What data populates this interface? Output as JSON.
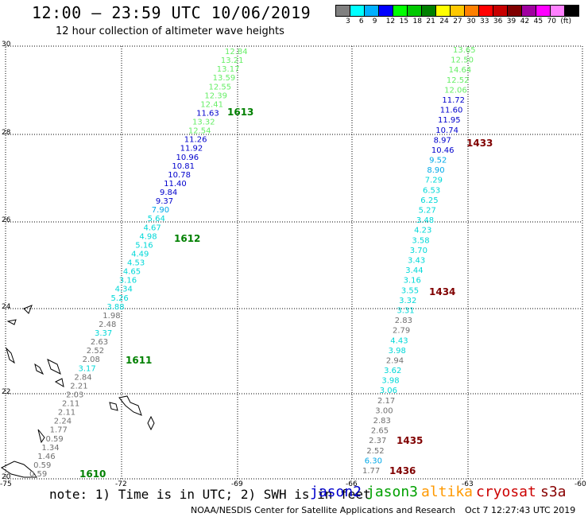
{
  "header": {
    "title": "12:00 – 23:59 UTC 10/06/2019",
    "subtitle": "12 hour collection of altimeter wave heights"
  },
  "legend": {
    "colors": [
      "#808080",
      "#00ffff",
      "#00b0ff",
      "#0000ff",
      "#00ff00",
      "#00c800",
      "#008000",
      "#ffff00",
      "#ffc800",
      "#ff8000",
      "#ff0000",
      "#c80000",
      "#800000",
      "#a000a0",
      "#ff00ff",
      "#ff80ff",
      "#000000"
    ],
    "ticks": [
      "3",
      "6",
      "9",
      "12",
      "15",
      "18",
      "21",
      "24",
      "27",
      "30",
      "33",
      "36",
      "39",
      "42",
      "45",
      "70",
      "(ft)"
    ]
  },
  "axes": {
    "lat_labels": [
      "30",
      "28",
      "26",
      "24",
      "22",
      "20"
    ],
    "lon_labels": [
      "-75",
      "-72",
      "-69",
      "-66",
      "-63",
      "-60"
    ]
  },
  "pass_labels": [
    {
      "text": "1613",
      "color": "#008000"
    },
    {
      "text": "1612",
      "color": "#008000"
    },
    {
      "text": "1611",
      "color": "#008000"
    },
    {
      "text": "1610",
      "color": "#008000"
    },
    {
      "text": "1433",
      "color": "#800000"
    },
    {
      "text": "1434",
      "color": "#800000"
    },
    {
      "text": "1435",
      "color": "#800000"
    },
    {
      "text": "1436",
      "color": "#800000"
    }
  ],
  "track_west": [
    {
      "v": "12.84",
      "c": "#66ee66"
    },
    {
      "v": "13.21",
      "c": "#66ee66"
    },
    {
      "v": "13.17",
      "c": "#66ee66"
    },
    {
      "v": "13.59",
      "c": "#66ee66"
    },
    {
      "v": "12.55",
      "c": "#66ee66"
    },
    {
      "v": "12.39",
      "c": "#66ee66"
    },
    {
      "v": "12.41",
      "c": "#66ee66"
    },
    {
      "v": "11.63",
      "c": "#0000cc"
    },
    {
      "v": "13.32",
      "c": "#66ee66"
    },
    {
      "v": "12.54",
      "c": "#66ee66"
    },
    {
      "v": "11.26",
      "c": "#0000cc"
    },
    {
      "v": "11.92",
      "c": "#0000cc"
    },
    {
      "v": "10.96",
      "c": "#0000cc"
    },
    {
      "v": "10.81",
      "c": "#0000cc"
    },
    {
      "v": "10.78",
      "c": "#0000cc"
    },
    {
      "v": "11.40",
      "c": "#0000cc"
    },
    {
      "v": "9.84",
      "c": "#0000cc"
    },
    {
      "v": "9.37",
      "c": "#0000cc"
    },
    {
      "v": "7.90",
      "c": "#00a8e8"
    },
    {
      "v": "5.64",
      "c": "#00d8d8"
    },
    {
      "v": "4.67",
      "c": "#00d8d8"
    },
    {
      "v": "4.98",
      "c": "#00d8d8"
    },
    {
      "v": "5.16",
      "c": "#00d8d8"
    },
    {
      "v": "4.49",
      "c": "#00d8d8"
    },
    {
      "v": "4.53",
      "c": "#00d8d8"
    },
    {
      "v": "4.65",
      "c": "#00d8d8"
    },
    {
      "v": "3.16",
      "c": "#00d8d8"
    },
    {
      "v": "4.34",
      "c": "#00d8d8"
    },
    {
      "v": "5.26",
      "c": "#00d8d8"
    },
    {
      "v": "3.88",
      "c": "#00d8d8"
    },
    {
      "v": "1.98",
      "c": "#707070"
    },
    {
      "v": "2.48",
      "c": "#707070"
    },
    {
      "v": "3.37",
      "c": "#00d8d8"
    },
    {
      "v": "2.63",
      "c": "#707070"
    },
    {
      "v": "2.52",
      "c": "#707070"
    },
    {
      "v": "2.08",
      "c": "#707070"
    },
    {
      "v": "3.17",
      "c": "#00d8d8"
    },
    {
      "v": "2.84",
      "c": "#707070"
    },
    {
      "v": "2.21",
      "c": "#707070"
    },
    {
      "v": "2.03",
      "c": "#707070"
    },
    {
      "v": "2.11",
      "c": "#707070"
    },
    {
      "v": "2.11",
      "c": "#707070"
    },
    {
      "v": "2.24",
      "c": "#707070"
    },
    {
      "v": "1.77",
      "c": "#707070"
    },
    {
      "v": "0.59",
      "c": "#707070"
    },
    {
      "v": "1.34",
      "c": "#707070"
    },
    {
      "v": "1.46",
      "c": "#707070"
    },
    {
      "v": "0.59",
      "c": "#707070"
    },
    {
      "v": "0.59",
      "c": "#707070"
    }
  ],
  "track_east": [
    {
      "v": "13.65",
      "c": "#66ee66"
    },
    {
      "v": "12.50",
      "c": "#66ee66"
    },
    {
      "v": "14.64",
      "c": "#66ee66"
    },
    {
      "v": "12.52",
      "c": "#66ee66"
    },
    {
      "v": "12.06",
      "c": "#66ee66"
    },
    {
      "v": "11.72",
      "c": "#0000cc"
    },
    {
      "v": "11.60",
      "c": "#0000cc"
    },
    {
      "v": "11.95",
      "c": "#0000cc"
    },
    {
      "v": "10.74",
      "c": "#0000cc"
    },
    {
      "v": "8.97",
      "c": "#0000cc"
    },
    {
      "v": "10.46",
      "c": "#0000cc"
    },
    {
      "v": "9.52",
      "c": "#00a8e8"
    },
    {
      "v": "8.90",
      "c": "#00a8e8"
    },
    {
      "v": "7.29",
      "c": "#00d8d8"
    },
    {
      "v": "6.53",
      "c": "#00d8d8"
    },
    {
      "v": "6.25",
      "c": "#00d8d8"
    },
    {
      "v": "5.27",
      "c": "#00d8d8"
    },
    {
      "v": "3.48",
      "c": "#00d8d8"
    },
    {
      "v": "4.23",
      "c": "#00d8d8"
    },
    {
      "v": "3.58",
      "c": "#00d8d8"
    },
    {
      "v": "3.70",
      "c": "#00d8d8"
    },
    {
      "v": "3.43",
      "c": "#00d8d8"
    },
    {
      "v": "3.44",
      "c": "#00d8d8"
    },
    {
      "v": "3.16",
      "c": "#00d8d8"
    },
    {
      "v": "3.55",
      "c": "#00d8d8"
    },
    {
      "v": "3.32",
      "c": "#00d8d8"
    },
    {
      "v": "3.31",
      "c": "#00d8d8"
    },
    {
      "v": "2.83",
      "c": "#707070"
    },
    {
      "v": "2.79",
      "c": "#707070"
    },
    {
      "v": "4.43",
      "c": "#00d8d8"
    },
    {
      "v": "3.98",
      "c": "#00d8d8"
    },
    {
      "v": "2.94",
      "c": "#707070"
    },
    {
      "v": "3.62",
      "c": "#00d8d8"
    },
    {
      "v": "3.98",
      "c": "#00d8d8"
    },
    {
      "v": "3.06",
      "c": "#00d8d8"
    },
    {
      "v": "2.17",
      "c": "#707070"
    },
    {
      "v": "3.00",
      "c": "#707070"
    },
    {
      "v": "2.83",
      "c": "#707070"
    },
    {
      "v": "2.65",
      "c": "#707070"
    },
    {
      "v": "2.37",
      "c": "#707070"
    },
    {
      "v": "2.52",
      "c": "#707070"
    },
    {
      "v": "6.30",
      "c": "#00a8e8"
    },
    {
      "v": "1.77",
      "c": "#707070"
    }
  ],
  "footer": {
    "note": "note: 1) Time is in UTC; 2) SWH is in feet",
    "satellites": [
      {
        "name": "jason2",
        "color": "#0000cc"
      },
      {
        "name": "jason3",
        "color": "#00a000"
      },
      {
        "name": "altika",
        "color": "#ff9900"
      },
      {
        "name": "cryosat",
        "color": "#cc0000"
      },
      {
        "name": "s3a",
        "color": "#880000"
      }
    ],
    "credit": "NOAA/NESDIS Center for Satellite Applications and Research",
    "timestamp": "Oct  7 12:27:43 UTC 2019"
  }
}
